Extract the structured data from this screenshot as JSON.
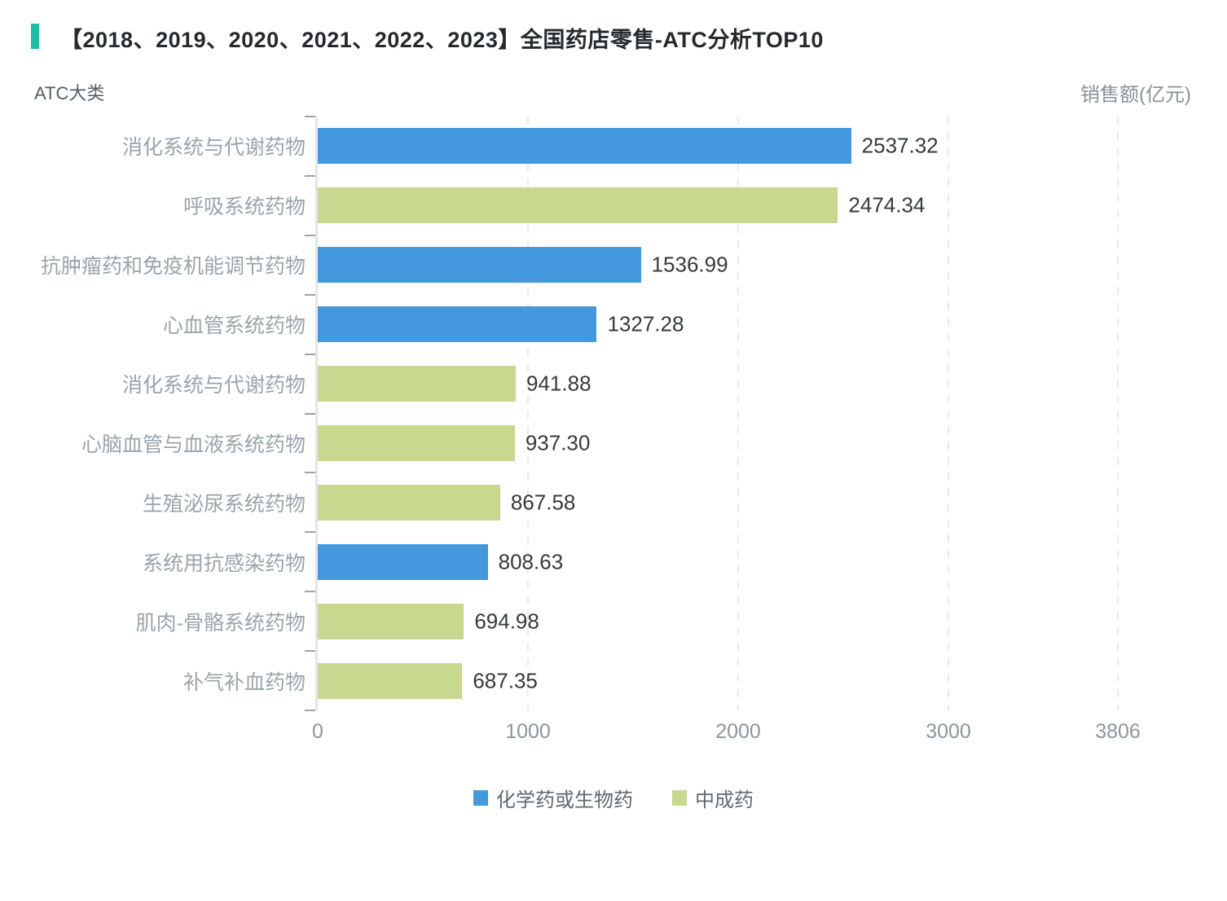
{
  "header": {
    "accent_color": "#19BFA7",
    "title": "【2018、2019、2020、2021、2022、2023】全国药店零售-ATC分析TOP10"
  },
  "axes": {
    "y_axis_title": "ATC大类",
    "x_axis_title": "销售额(亿元)"
  },
  "chart_data": {
    "type": "bar",
    "orientation": "horizontal",
    "title": "【2018、2019、2020、2021、2022、2023】全国药店零售-ATC分析TOP10",
    "xlabel": "销售额(亿元)",
    "ylabel": "ATC大类",
    "xlim": [
      0,
      3806
    ],
    "x_ticks": [
      "0",
      "1000",
      "2000",
      "3000",
      "3806"
    ],
    "x_tick_values": [
      0,
      1000,
      2000,
      3000,
      3806
    ],
    "grid": "vertical-dashed",
    "gridline_color": "#E3ECEA",
    "legend_position": "bottom",
    "series": [
      {
        "name": "化学药或生物药",
        "color": "#4398DE"
      },
      {
        "name": "中成药",
        "color": "#C8D88F"
      }
    ],
    "bars": [
      {
        "label": "消化系统与代谢药物",
        "value": 2537.32,
        "value_label": "2537.32",
        "series": "化学药或生物药"
      },
      {
        "label": "呼吸系统药物",
        "value": 2474.34,
        "value_label": "2474.34",
        "series": "中成药"
      },
      {
        "label": "抗肿瘤药和免疫机能调节药物",
        "value": 1536.99,
        "value_label": "1536.99",
        "series": "化学药或生物药"
      },
      {
        "label": "心血管系统药物",
        "value": 1327.28,
        "value_label": "1327.28",
        "series": "化学药或生物药"
      },
      {
        "label": "消化系统与代谢药物",
        "value": 941.88,
        "value_label": "941.88",
        "series": "中成药"
      },
      {
        "label": "心脑血管与血液系统药物",
        "value": 937.3,
        "value_label": "937.30",
        "series": "中成药"
      },
      {
        "label": "生殖泌尿系统药物",
        "value": 867.58,
        "value_label": "867.58",
        "series": "中成药"
      },
      {
        "label": "系统用抗感染药物",
        "value": 808.63,
        "value_label": "808.63",
        "series": "化学药或生物药"
      },
      {
        "label": "肌肉-骨骼系统药物",
        "value": 694.98,
        "value_label": "694.98",
        "series": "中成药"
      },
      {
        "label": "补气补血药物",
        "value": 687.35,
        "value_label": "687.35",
        "series": "中成药"
      }
    ]
  },
  "legend": {
    "items": [
      {
        "label": "化学药或生物药",
        "color": "#4398DE"
      },
      {
        "label": "中成药",
        "color": "#C8D88F"
      }
    ]
  }
}
